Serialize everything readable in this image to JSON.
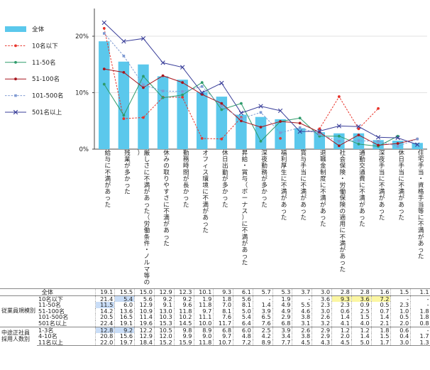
{
  "chart_data": {
    "type": "bar+line",
    "categories": [
      "給与に不満があった",
      "残業が多かった",
      "厳しさに不満があった（労働条件・ノルマ等の）",
      "休みの取りやすさに不満があった",
      "勤務時間が長かった",
      "オフィス環境に不満があった",
      "休日出勤が多かった",
      "昇給・賞与（ボーナス）に不満があった",
      "深夜勤務が多かった",
      "福利厚生に不満があった",
      "賞与手当に不満があった",
      "退職金制度に不満があった",
      "社会保険・労働保険の適用に不満があった",
      "通勤交通費に不満があった",
      "深夜手当に不満があった",
      "休日手当に不満があった",
      "住宅手当・資格手当等に不満があった"
    ],
    "ylim": [
      0,
      25
    ],
    "yticks": [
      "0%",
      "10%",
      "20%"
    ],
    "ytick_values": [
      0,
      10,
      20
    ],
    "bar_series": {
      "name": "全体",
      "color": "#5bc8ec",
      "values": [
        19.1,
        15.5,
        15.0,
        12.9,
        12.3,
        10.1,
        9.3,
        6.1,
        5.7,
        5.3,
        3.7,
        3.0,
        2.8,
        2.8,
        1.6,
        1.5,
        1.1
      ]
    },
    "line_series": [
      {
        "name": "10名以下",
        "color": "#e8332a",
        "style": "dashed",
        "marker": "circle",
        "values": [
          21.4,
          5.4,
          5.6,
          9.2,
          9.2,
          1.9,
          1.8,
          5.6,
          null,
          1.9,
          null,
          3.6,
          9.3,
          3.6,
          7.2,
          null,
          null
        ]
      },
      {
        "name": "11-50名",
        "color": "#2e9b6b",
        "style": "solid",
        "marker": "circle",
        "values": [
          11.5,
          6.0,
          12.9,
          9.1,
          9.6,
          11.8,
          7.0,
          8.1,
          1.4,
          4.9,
          5.5,
          2.3,
          2.3,
          0.9,
          0.5,
          2.3,
          null
        ]
      },
      {
        "name": "51-100名",
        "color": "#a8161e",
        "style": "solid",
        "marker": "circle",
        "values": [
          14.2,
          13.6,
          10.9,
          13.0,
          11.8,
          9.7,
          8.1,
          5.0,
          3.9,
          4.9,
          4.6,
          3.0,
          0.6,
          2.5,
          0.7,
          1.0,
          1.8
        ]
      },
      {
        "name": "101-500名",
        "color": "#7f9ad2",
        "style": "dashed",
        "marker": "square",
        "values": [
          20.5,
          16.5,
          11.4,
          10.3,
          10.2,
          11.1,
          7.6,
          5.4,
          6.5,
          2.9,
          3.8,
          2.6,
          1.4,
          1.5,
          1.4,
          0.5,
          1.8
        ]
      },
      {
        "name": "501名以上",
        "color": "#3a3f9a",
        "style": "solid",
        "marker": "x",
        "values": [
          22.4,
          19.1,
          19.6,
          15.3,
          14.5,
          10.0,
          11.7,
          6.4,
          7.6,
          6.8,
          3.1,
          3.2,
          4.1,
          4.0,
          2.1,
          2.0,
          0.8
        ]
      }
    ]
  },
  "table": {
    "rows": [
      {
        "group": "",
        "label": "全体",
        "values": [
          "19.1",
          "15.5",
          "15.0",
          "12.9",
          "12.3",
          "10.1",
          "9.3",
          "6.1",
          "5.7",
          "5.3",
          "3.7",
          "3.0",
          "2.8",
          "2.8",
          "1.6",
          "1.5",
          "1.1"
        ]
      },
      {
        "group": "従業員規模別",
        "label": "10名以下",
        "values": [
          "21.4",
          "5.4",
          "5.6",
          "9.2",
          "9.2",
          "1.9",
          "1.8",
          "5.6",
          "-",
          "1.9",
          "-",
          "3.6",
          "9.3",
          "3.6",
          "7.2",
          "-",
          "-"
        ]
      },
      {
        "group": "",
        "label": "11-50名",
        "values": [
          "11.5",
          "6.0",
          "12.9",
          "9.1",
          "9.6",
          "11.8",
          "7.0",
          "8.1",
          "1.4",
          "4.9",
          "5.5",
          "2.3",
          "2.3",
          "0.9",
          "0.5",
          "2.3",
          "-"
        ]
      },
      {
        "group": "",
        "label": "51-100名",
        "values": [
          "14.2",
          "13.6",
          "10.9",
          "13.0",
          "11.8",
          "9.7",
          "8.1",
          "5.0",
          "3.9",
          "4.9",
          "4.6",
          "3.0",
          "0.6",
          "2.5",
          "0.7",
          "1.0",
          "1.8"
        ]
      },
      {
        "group": "",
        "label": "101-500名",
        "values": [
          "20.5",
          "16.5",
          "11.4",
          "10.3",
          "10.2",
          "11.1",
          "7.6",
          "5.4",
          "6.5",
          "2.9",
          "3.8",
          "2.6",
          "1.4",
          "1.5",
          "1.4",
          "0.5",
          "1.8"
        ]
      },
      {
        "group": "",
        "label": "501名以上",
        "values": [
          "22.4",
          "19.1",
          "19.6",
          "15.3",
          "14.5",
          "10.0",
          "11.7",
          "6.4",
          "7.6",
          "6.8",
          "3.1",
          "3.2",
          "4.1",
          "4.0",
          "2.1",
          "2.0",
          "0.8"
        ]
      },
      {
        "group": "中途正社員採用人数別",
        "label": "1-3名",
        "values": [
          "12.8",
          "9.2",
          "12.2",
          "10.5",
          "9.8",
          "8.9",
          "6.8",
          "6.0",
          "2.5",
          "3.9",
          "2.6",
          "2.9",
          "1.2",
          "1.2",
          "1.8",
          "0.6",
          "-"
        ]
      },
      {
        "group": "",
        "label": "4-10名",
        "values": [
          "20.8",
          "15.6",
          "12.9",
          "12.0",
          "9.9",
          "9.0",
          "9.7",
          "4.8",
          "4.2",
          "3.4",
          "3.8",
          "2.9",
          "2.0",
          "1.4",
          "1.5",
          "0.4",
          "1.7"
        ]
      },
      {
        "group": "",
        "label": "11名以上",
        "values": [
          "22.0",
          "19.7",
          "18.4",
          "15.2",
          "15.9",
          "11.8",
          "10.7",
          "7.2",
          "8.9",
          "7.7",
          "4.5",
          "4.3",
          "4.5",
          "5.0",
          "1.7",
          "3.0",
          "1.3"
        ]
      }
    ],
    "group_labels": {
      "size": "従業員規模別",
      "hire": "中途正社員\n採用人数別"
    },
    "group_label_lines": {
      "size": [
        "従業員規模別"
      ],
      "hire": [
        "中途正社員",
        "採用人数別"
      ]
    }
  }
}
